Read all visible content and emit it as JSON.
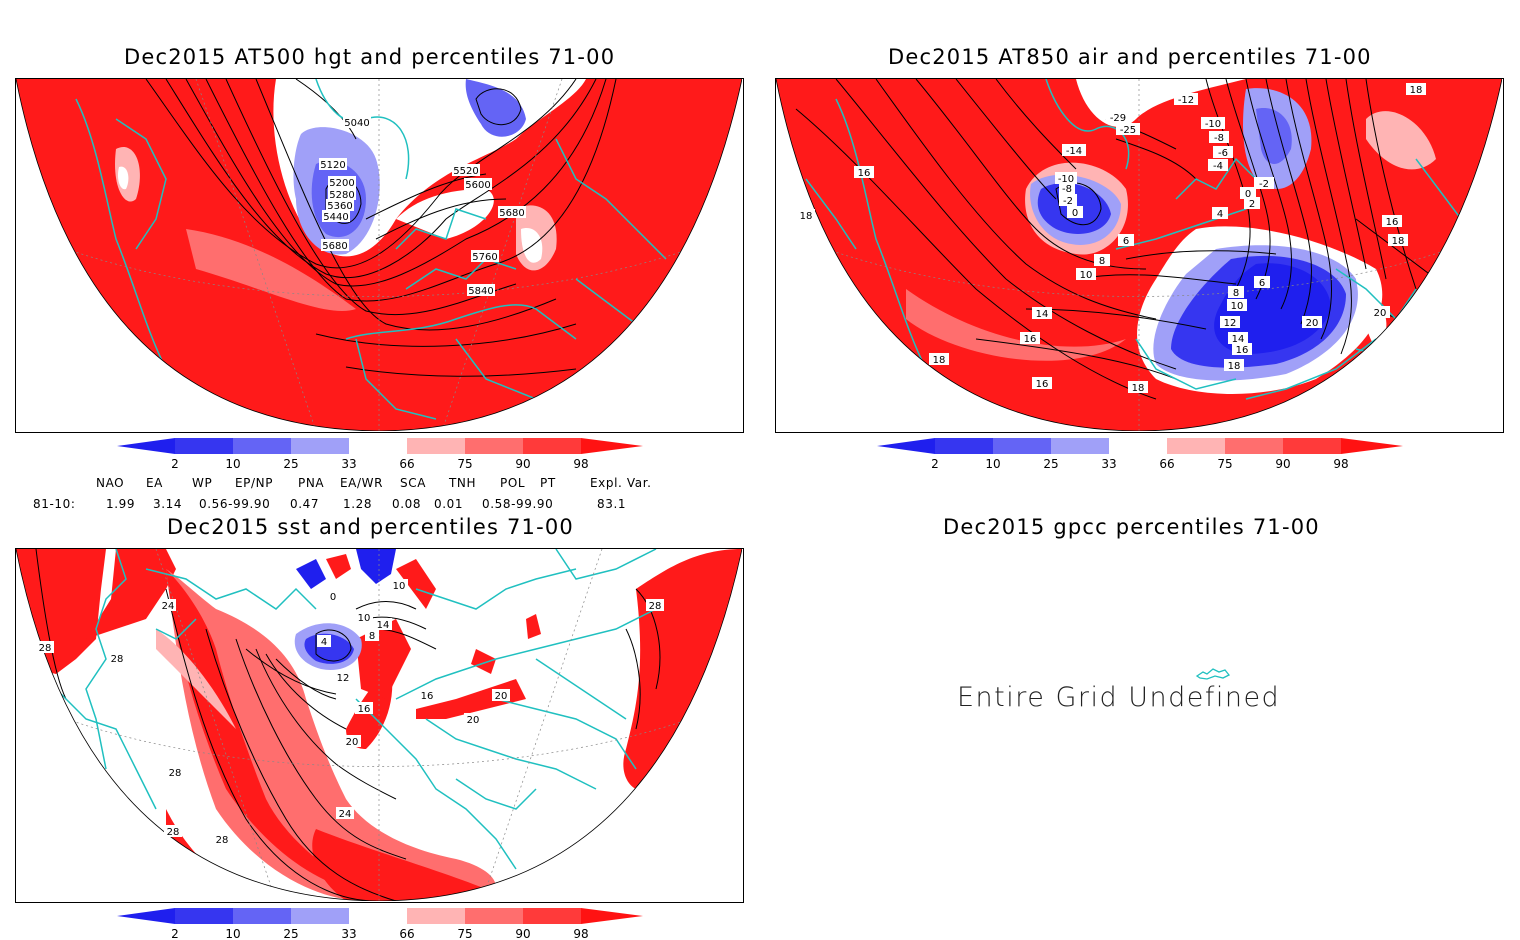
{
  "panels": [
    {
      "id": "hgt500",
      "title": "Dec2015 AT500 hgt and percentiles 71-00",
      "contour_labels": [
        "5040",
        "5120",
        "5200",
        "5280",
        "5360",
        "5440",
        "5520",
        "5600",
        "5680",
        "5680",
        "5760",
        "5840"
      ]
    },
    {
      "id": "air850",
      "title": "Dec2015 AT850 air and percentiles 71-00",
      "contour_labels": [
        "-12",
        "-10",
        "-8",
        "-6",
        "-4",
        "-2",
        "0",
        "2",
        "4",
        "-29",
        "-25",
        "-14",
        "-10",
        "-8",
        "-2",
        "0",
        "6",
        "8",
        "10",
        "6",
        "8",
        "10",
        "12",
        "14",
        "16",
        "18",
        "14",
        "16",
        "18",
        "16",
        "16",
        "18",
        "20",
        "20",
        "16",
        "18",
        "18",
        "18"
      ]
    },
    {
      "id": "sst",
      "title": "Dec2015 sst and percentiles 71-00",
      "contour_labels": [
        "24",
        "28",
        "28",
        "28",
        "28",
        "28",
        "24",
        "20",
        "16",
        "12",
        "4",
        "8",
        "10",
        "14",
        "16",
        "20",
        "20",
        "0",
        "10",
        "28"
      ]
    },
    {
      "id": "gpcc",
      "title": "Dec2015 gpcc percentiles 71-00",
      "message": "Entire Grid Undefined"
    }
  ],
  "colorbar": {
    "labels": [
      "2",
      "10",
      "25",
      "33",
      "66",
      "75",
      "90",
      "98"
    ],
    "colors": [
      "#1f1fee",
      "#3636f0",
      "#6464f5",
      "#a0a0f8",
      "#ffffff",
      "#ffb4b4",
      "#ff6e6e",
      "#ff3a3a",
      "#ff1212"
    ]
  },
  "teleconnections": {
    "headers": [
      "NAO",
      "EA",
      "WP",
      "EP/NP",
      "PNA",
      "EA/WR",
      "SCA",
      "TNH",
      "POL",
      "PT",
      "Expl. Var."
    ],
    "row_label": "81-10:",
    "values": [
      "1.99",
      "3.14",
      "0.56-99.90",
      "0.47",
      "1.28",
      "0.08",
      "0.01",
      "0.58-99.90",
      "83.1"
    ]
  },
  "colors": {
    "land_outline": "#20c0c0",
    "warm": "#ff1a1a",
    "cold": "#3a3aee"
  }
}
